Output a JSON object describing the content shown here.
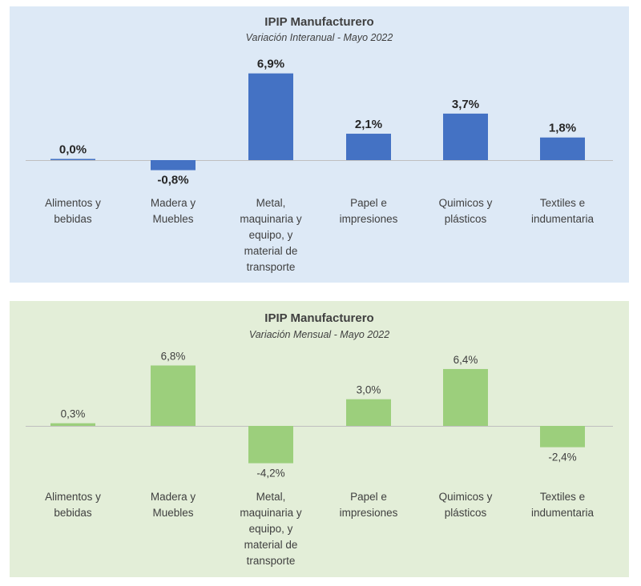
{
  "chart_data": [
    {
      "type": "bar",
      "title": "IPIP Manufacturero",
      "subtitle": "Variación Interanual - Mayo 2022",
      "categories": [
        [
          "Alimentos y",
          "bebidas"
        ],
        [
          "Madera y",
          "Muebles"
        ],
        [
          "Metal,",
          "maquinaria y",
          "equipo, y",
          "material de",
          "transporte"
        ],
        [
          "Papel e",
          "impresiones"
        ],
        [
          "Quimicos y",
          "plásticos"
        ],
        [
          "Textiles e",
          "indumentaria"
        ]
      ],
      "values": [
        0.0,
        -0.8,
        6.9,
        2.1,
        3.7,
        1.8
      ],
      "value_labels": [
        "0,0%",
        "-0,8%",
        "6,9%",
        "2,1%",
        "3,7%",
        "1,8%"
      ],
      "bar_color": "#4472c4",
      "background": "#dde9f6",
      "grid": false,
      "legend": "none"
    },
    {
      "type": "bar",
      "title": "IPIP Manufacturero",
      "subtitle": "Variación Mensual - Mayo 2022",
      "categories": [
        [
          "Alimentos y",
          "bebidas"
        ],
        [
          "Madera y",
          "Muebles"
        ],
        [
          "Metal,",
          "maquinaria y",
          "equipo, y",
          "material de",
          "transporte"
        ],
        [
          "Papel e",
          "impresiones"
        ],
        [
          "Quimicos y",
          "plásticos"
        ],
        [
          "Textiles e",
          "indumentaria"
        ]
      ],
      "values": [
        0.3,
        6.8,
        -4.2,
        3.0,
        6.4,
        -2.4
      ],
      "value_labels": [
        "0,3%",
        "6,8%",
        "-4,2%",
        "3,0%",
        "6,4%",
        "-2,4%"
      ],
      "bar_color": "#9ccf7c",
      "background": "#e3eed8",
      "grid": false,
      "legend": "none"
    }
  ]
}
